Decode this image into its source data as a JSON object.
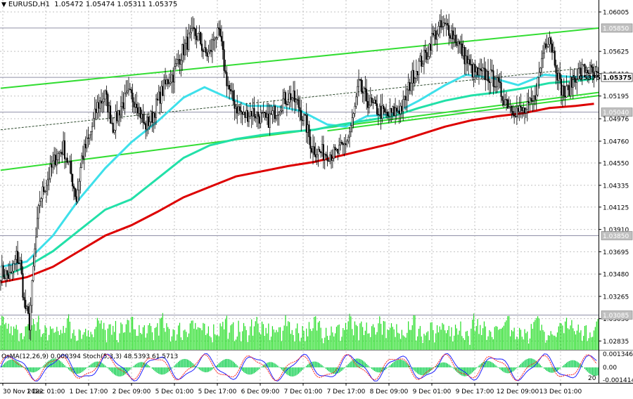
{
  "header": {
    "symbol": "EURUSD,H1",
    "ohlc": "1.05472 1.05474 1.05311 1.05375"
  },
  "colors": {
    "background": "#ffffff",
    "grid": "#c0c0c0",
    "candle": "#000000",
    "ma_cyan": "#3ee0ea",
    "ma_teal": "#22e0a8",
    "ma_red": "#dd0000",
    "channel": "#33dd33",
    "trendline_dark": "#2d4a2d",
    "volume": "#22dd22",
    "osma": "#00cc44",
    "stoch_main": "#2020ff",
    "stoch_signal": "#ff2020",
    "hline": "#9090a8",
    "price_marker_bg": "#c0c0c0"
  },
  "chart_data": {
    "type": "candlestick",
    "title": "EURUSD,H1",
    "ylim": [
      1.0275,
      1.0612
    ],
    "y_ticks": [
      "1.06005",
      "1.05625",
      "1.05410",
      "1.05195",
      "1.04976",
      "1.04760",
      "1.04550",
      "1.04335",
      "1.04125",
      "1.03910",
      "1.03695",
      "1.03480",
      "1.03265",
      "1.03050",
      "1.02835"
    ],
    "x_ticks": [
      "30 Nov 2022",
      "1 Dec 01:00",
      "1 Dec 17:00",
      "2 Dec 09:00",
      "5 Dec 01:00",
      "5 Dec 17:00",
      "6 Dec 09:00",
      "7 Dec 01:00",
      "7 Dec 17:00",
      "8 Dec 09:00",
      "9 Dec 01:00",
      "9 Dec 17:00",
      "12 Dec 09:00",
      "13 Dec 01:00"
    ],
    "price_labels": [
      {
        "value": 1.0585,
        "text": "1.05850"
      },
      {
        "value": 1.05375,
        "text": "1.05375",
        "current": true
      },
      {
        "value": 1.0504,
        "text": "1.05040"
      },
      {
        "value": 1.0385,
        "text": "1.03850"
      },
      {
        "value": 1.03085,
        "text": "1.03085"
      }
    ],
    "anchors": [
      [
        0,
        1.035
      ],
      [
        8,
        1.0345
      ],
      [
        12,
        1.0365
      ],
      [
        15,
        1.0358
      ],
      [
        18,
        1.032
      ],
      [
        22,
        1.03
      ],
      [
        26,
        1.037
      ],
      [
        30,
        1.042
      ],
      [
        36,
        1.044
      ],
      [
        42,
        1.046
      ],
      [
        48,
        1.047
      ],
      [
        53,
        1.045
      ],
      [
        58,
        1.042
      ],
      [
        62,
        1.046
      ],
      [
        68,
        1.048
      ],
      [
        74,
        1.051
      ],
      [
        80,
        1.052
      ],
      [
        86,
        1.049
      ],
      [
        92,
        1.051
      ],
      [
        98,
        1.052
      ],
      [
        104,
        1.0515
      ],
      [
        110,
        1.049
      ],
      [
        116,
        1.05
      ],
      [
        122,
        1.052
      ],
      [
        128,
        1.0535
      ],
      [
        132,
        1.054
      ],
      [
        136,
        1.0555
      ],
      [
        142,
        1.057
      ],
      [
        148,
        1.058
      ],
      [
        152,
        1.0575
      ],
      [
        156,
        1.056
      ],
      [
        160,
        1.056
      ],
      [
        164,
        1.058
      ],
      [
        168,
        1.0575
      ],
      [
        172,
        1.054
      ],
      [
        176,
        1.052
      ],
      [
        180,
        1.051
      ],
      [
        186,
        1.05
      ],
      [
        192,
        1.0505
      ],
      [
        198,
        1.05
      ],
      [
        204,
        1.0495
      ],
      [
        210,
        1.0505
      ],
      [
        216,
        1.0515
      ],
      [
        222,
        1.052
      ],
      [
        228,
        1.051
      ],
      [
        234,
        1.049
      ],
      [
        238,
        1.047
      ],
      [
        244,
        1.0465
      ],
      [
        250,
        1.0465
      ],
      [
        256,
        1.0463
      ],
      [
        262,
        1.047
      ],
      [
        266,
        1.048
      ],
      [
        270,
        1.05
      ],
      [
        274,
        1.053
      ],
      [
        278,
        1.052
      ],
      [
        284,
        1.051
      ],
      [
        290,
        1.0505
      ],
      [
        296,
        1.05
      ],
      [
        302,
        1.0505
      ],
      [
        308,
        1.051
      ],
      [
        314,
        1.0535
      ],
      [
        320,
        1.055
      ],
      [
        326,
        1.056
      ],
      [
        330,
        1.0575
      ],
      [
        336,
        1.0585
      ],
      [
        342,
        1.0586
      ],
      [
        348,
        1.0575
      ],
      [
        354,
        1.056
      ],
      [
        360,
        1.0545
      ],
      [
        366,
        1.054
      ],
      [
        372,
        1.054
      ],
      [
        378,
        1.0535
      ],
      [
        384,
        1.052
      ],
      [
        390,
        1.051
      ],
      [
        396,
        1.0505
      ],
      [
        402,
        1.0505
      ],
      [
        408,
        1.0515
      ],
      [
        412,
        1.054
      ],
      [
        416,
        1.057
      ],
      [
        420,
        1.0578
      ],
      [
        424,
        1.0555
      ],
      [
        428,
        1.053
      ],
      [
        432,
        1.052
      ],
      [
        436,
        1.053
      ],
      [
        440,
        1.054
      ],
      [
        446,
        1.0545
      ],
      [
        450,
        1.0545
      ],
      [
        454,
        1.05375
      ]
    ],
    "moving_averages": [
      {
        "color": "cyan",
        "points": [
          [
            0,
            1.0355
          ],
          [
            20,
            1.036
          ],
          [
            40,
            1.0385
          ],
          [
            60,
            1.042
          ],
          [
            80,
            1.045
          ],
          [
            100,
            1.0475
          ],
          [
            120,
            1.0495
          ],
          [
            140,
            1.0518
          ],
          [
            156,
            1.0528
          ],
          [
            170,
            1.052
          ],
          [
            190,
            1.051
          ],
          [
            210,
            1.051
          ],
          [
            230,
            1.0505
          ],
          [
            250,
            1.0492
          ],
          [
            264,
            1.049
          ],
          [
            280,
            1.05
          ],
          [
            300,
            1.0502
          ],
          [
            320,
            1.0515
          ],
          [
            340,
            1.053
          ],
          [
            356,
            1.054
          ],
          [
            376,
            1.0537
          ],
          [
            396,
            1.053
          ],
          [
            416,
            1.054
          ],
          [
            436,
            1.0538
          ],
          [
            454,
            1.0538
          ]
        ]
      },
      {
        "color": "teal",
        "points": [
          [
            0,
            1.0345
          ],
          [
            20,
            1.0355
          ],
          [
            40,
            1.037
          ],
          [
            60,
            1.039
          ],
          [
            80,
            1.041
          ],
          [
            100,
            1.042
          ],
          [
            120,
            1.044
          ],
          [
            140,
            1.046
          ],
          [
            160,
            1.0472
          ],
          [
            180,
            1.0478
          ],
          [
            200,
            1.0482
          ],
          [
            220,
            1.0485
          ],
          [
            240,
            1.0487
          ],
          [
            260,
            1.0492
          ],
          [
            280,
            1.0496
          ],
          [
            300,
            1.05
          ],
          [
            320,
            1.0508
          ],
          [
            340,
            1.0515
          ],
          [
            360,
            1.052
          ],
          [
            380,
            1.0523
          ],
          [
            400,
            1.0527
          ],
          [
            420,
            1.0532
          ],
          [
            440,
            1.0534
          ],
          [
            454,
            1.0536
          ]
        ]
      },
      {
        "color": "red",
        "points": [
          [
            0,
            1.034
          ],
          [
            20,
            1.0345
          ],
          [
            40,
            1.0355
          ],
          [
            60,
            1.037
          ],
          [
            80,
            1.0385
          ],
          [
            100,
            1.0395
          ],
          [
            120,
            1.0408
          ],
          [
            140,
            1.0422
          ],
          [
            160,
            1.0432
          ],
          [
            180,
            1.0442
          ],
          [
            200,
            1.0447
          ],
          [
            220,
            1.0452
          ],
          [
            240,
            1.0456
          ],
          [
            260,
            1.0462
          ],
          [
            280,
            1.0468
          ],
          [
            300,
            1.0474
          ],
          [
            320,
            1.0482
          ],
          [
            340,
            1.049
          ],
          [
            360,
            1.0496
          ],
          [
            380,
            1.05
          ],
          [
            400,
            1.0503
          ],
          [
            420,
            1.0508
          ],
          [
            440,
            1.051
          ],
          [
            454,
            1.0512
          ]
        ]
      }
    ],
    "trendlines": [
      {
        "color": "channel",
        "from": [
          0,
          1.0527
        ],
        "to": [
          458,
          1.0585
        ]
      },
      {
        "color": "channel",
        "from": [
          0,
          1.0448
        ],
        "to": [
          458,
          1.0523
        ]
      },
      {
        "color": "channel",
        "from": [
          250,
          1.0486
        ],
        "to": [
          458,
          1.052
        ]
      },
      {
        "color": "dark",
        "from": [
          0,
          1.0487
        ],
        "to": [
          458,
          1.0548
        ]
      }
    ],
    "indicator": {
      "label": "OsMA(12,26,9) 0.000394  Stoch(5,3,3) 48.5393 61.5713",
      "right_labels": [
        "0.001346",
        "0.00",
        "-0.001414"
      ],
      "level_20": "20"
    }
  }
}
